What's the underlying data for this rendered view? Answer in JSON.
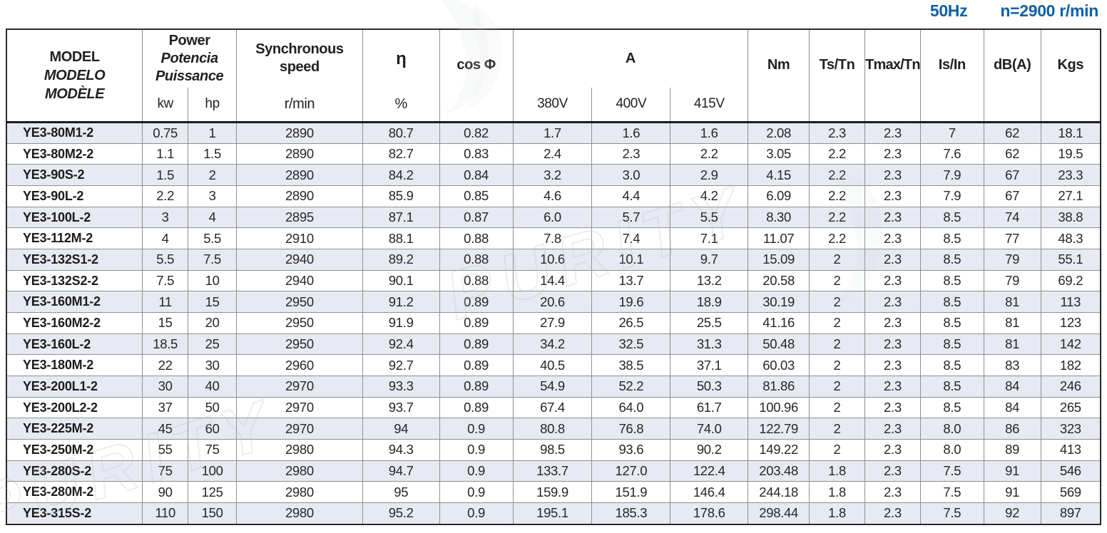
{
  "header_note": {
    "frequency": "50Hz",
    "speed": "n=2900 r/min"
  },
  "watermark": {
    "text": "PURITY"
  },
  "colors": {
    "accent_blue": "#0e5fa9",
    "stripe": "#e7eaf2",
    "grid_line": "#8f8f92",
    "frame": "#2a2a2c",
    "text": "#231f20"
  },
  "table": {
    "columns": {
      "model": {
        "lines": [
          "MODEL",
          "MODELO",
          "MODÈLE"
        ]
      },
      "power": {
        "lines": [
          "Power",
          "Potencia",
          "Puissance"
        ],
        "sub": [
          "kw",
          "hp"
        ]
      },
      "sync_speed": {
        "lines": [
          "Synchronous",
          "speed"
        ],
        "sub": "r/min"
      },
      "eta": {
        "label": "η",
        "sub": "%"
      },
      "cos_phi": {
        "label": "cos Φ"
      },
      "current": {
        "label": "A",
        "sub": [
          "380V",
          "400V",
          "415V"
        ]
      },
      "nm": "Nm",
      "ts_tn": "Ts/Tn",
      "tmax_tn": "Tmax/Tn",
      "is_in": "Is/In",
      "db": "dB(A)",
      "kgs": "Kgs"
    },
    "rows": [
      [
        "YE3-80M1-2",
        "0.75",
        "1",
        "2890",
        "80.7",
        "0.82",
        "1.7",
        "1.6",
        "1.6",
        "2.08",
        "2.3",
        "2.3",
        "7",
        "62",
        "18.1"
      ],
      [
        "YE3-80M2-2",
        "1.1",
        "1.5",
        "2890",
        "82.7",
        "0.83",
        "2.4",
        "2.3",
        "2.2",
        "3.05",
        "2.2",
        "2.3",
        "7.6",
        "62",
        "19.5"
      ],
      [
        "YE3-90S-2",
        "1.5",
        "2",
        "2890",
        "84.2",
        "0.84",
        "3.2",
        "3.0",
        "2.9",
        "4.15",
        "2.2",
        "2.3",
        "7.9",
        "67",
        "23.3"
      ],
      [
        "YE3-90L-2",
        "2.2",
        "3",
        "2890",
        "85.9",
        "0.85",
        "4.6",
        "4.4",
        "4.2",
        "6.09",
        "2.2",
        "2.3",
        "7.9",
        "67",
        "27.1"
      ],
      [
        "YE3-100L-2",
        "3",
        "4",
        "2895",
        "87.1",
        "0.87",
        "6.0",
        "5.7",
        "5.5",
        "8.30",
        "2.2",
        "2.3",
        "8.5",
        "74",
        "38.8"
      ],
      [
        "YE3-112M-2",
        "4",
        "5.5",
        "2910",
        "88.1",
        "0.88",
        "7.8",
        "7.4",
        "7.1",
        "11.07",
        "2.2",
        "2.3",
        "8.5",
        "77",
        "48.3"
      ],
      [
        "YE3-132S1-2",
        "5.5",
        "7.5",
        "2940",
        "89.2",
        "0.88",
        "10.6",
        "10.1",
        "9.7",
        "15.09",
        "2",
        "2.3",
        "8.5",
        "79",
        "55.1"
      ],
      [
        "YE3-132S2-2",
        "7.5",
        "10",
        "2940",
        "90.1",
        "0.88",
        "14.4",
        "13.7",
        "13.2",
        "20.58",
        "2",
        "2.3",
        "8.5",
        "79",
        "69.2"
      ],
      [
        "YE3-160M1-2",
        "11",
        "15",
        "2950",
        "91.2",
        "0.89",
        "20.6",
        "19.6",
        "18.9",
        "30.19",
        "2",
        "2.3",
        "8.5",
        "81",
        "113"
      ],
      [
        "YE3-160M2-2",
        "15",
        "20",
        "2950",
        "91.9",
        "0.89",
        "27.9",
        "26.5",
        "25.5",
        "41.16",
        "2",
        "2.3",
        "8.5",
        "81",
        "123"
      ],
      [
        "YE3-160L-2",
        "18.5",
        "25",
        "2950",
        "92.4",
        "0.89",
        "34.2",
        "32.5",
        "31.3",
        "50.48",
        "2",
        "2.3",
        "8.5",
        "81",
        "142"
      ],
      [
        "YE3-180M-2",
        "22",
        "30",
        "2960",
        "92.7",
        "0.89",
        "40.5",
        "38.5",
        "37.1",
        "60.03",
        "2",
        "2.3",
        "8.5",
        "83",
        "182"
      ],
      [
        "YE3-200L1-2",
        "30",
        "40",
        "2970",
        "93.3",
        "0.89",
        "54.9",
        "52.2",
        "50.3",
        "81.86",
        "2",
        "2.3",
        "8.5",
        "84",
        "246"
      ],
      [
        "YE3-200L2-2",
        "37",
        "50",
        "2970",
        "93.7",
        "0.89",
        "67.4",
        "64.0",
        "61.7",
        "100.96",
        "2",
        "2.3",
        "8.5",
        "84",
        "265"
      ],
      [
        "YE3-225M-2",
        "45",
        "60",
        "2970",
        "94",
        "0.9",
        "80.8",
        "76.8",
        "74.0",
        "122.79",
        "2",
        "2.3",
        "8.0",
        "86",
        "323"
      ],
      [
        "YE3-250M-2",
        "55",
        "75",
        "2980",
        "94.3",
        "0.9",
        "98.5",
        "93.6",
        "90.2",
        "149.22",
        "2",
        "2.3",
        "8.0",
        "89",
        "413"
      ],
      [
        "YE3-280S-2",
        "75",
        "100",
        "2980",
        "94.7",
        "0.9",
        "133.7",
        "127.0",
        "122.4",
        "203.48",
        "1.8",
        "2.3",
        "7.5",
        "91",
        "546"
      ],
      [
        "YE3-280M-2",
        "90",
        "125",
        "2980",
        "95",
        "0.9",
        "159.9",
        "151.9",
        "146.4",
        "244.18",
        "1.8",
        "2.3",
        "7.5",
        "91",
        "569"
      ],
      [
        "YE3-315S-2",
        "110",
        "150",
        "2980",
        "95.2",
        "0.9",
        "195.1",
        "185.3",
        "178.6",
        "298.44",
        "1.8",
        "2.3",
        "7.5",
        "92",
        "897"
      ]
    ]
  }
}
